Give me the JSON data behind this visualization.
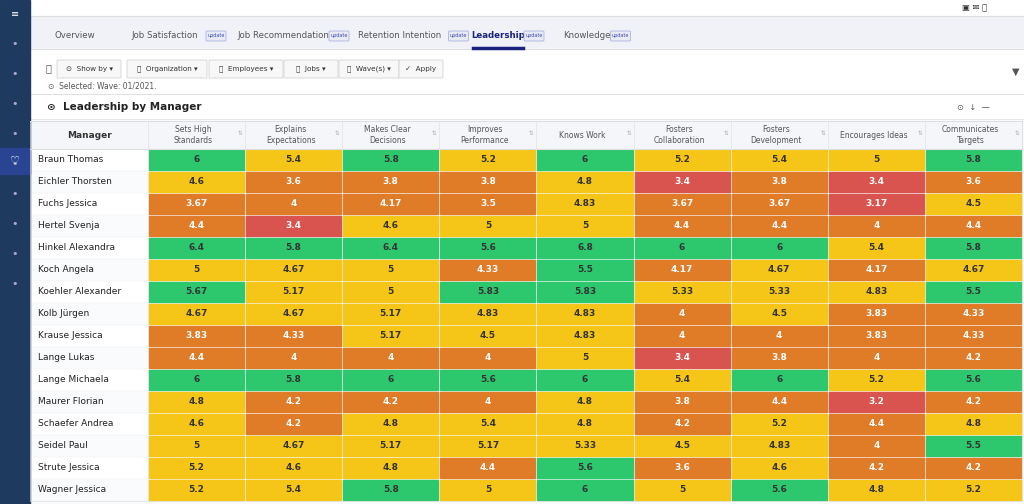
{
  "title": "Leadership by Manager",
  "columns": [
    "Sets High\nStandards",
    "Explains\nExpectations",
    "Makes Clear\nDecisions",
    "Improves\nPerformance",
    "Knows Work",
    "Fosters\nCollaboration",
    "Fosters\nDevelopment",
    "Encourages Ideas",
    "Communicates\nTargets"
  ],
  "managers": [
    "Braun Thomas",
    "Eichler Thorsten",
    "Fuchs Jessica",
    "Hertel Svenja",
    "Hinkel Alexandra",
    "Koch Angela",
    "Koehler Alexander",
    "Kolb Jürgen",
    "Krause Jessica",
    "Lange Lukas",
    "Lange Michaela",
    "Maurer Florian",
    "Schaefer Andrea",
    "Seidel Paul",
    "Strute Jessica",
    "Wagner Jessica"
  ],
  "values": [
    [
      6,
      5.4,
      5.8,
      5.2,
      6,
      5.2,
      5.4,
      5,
      5.8
    ],
    [
      4.6,
      3.6,
      3.8,
      3.8,
      4.8,
      3.4,
      3.8,
      3.4,
      3.6
    ],
    [
      3.67,
      4,
      4.17,
      3.5,
      4.83,
      3.67,
      3.67,
      3.17,
      4.5
    ],
    [
      4.4,
      3.4,
      4.6,
      5,
      5,
      4.4,
      4.4,
      4,
      4.4
    ],
    [
      6.4,
      5.8,
      6.4,
      5.6,
      6.8,
      6,
      6,
      5.4,
      5.8
    ],
    [
      5,
      4.67,
      5,
      4.33,
      5.5,
      4.17,
      4.67,
      4.17,
      4.67
    ],
    [
      5.67,
      5.17,
      5,
      5.83,
      5.83,
      5.33,
      5.33,
      4.83,
      5.5
    ],
    [
      4.67,
      4.67,
      5.17,
      4.83,
      4.83,
      4,
      4.5,
      3.83,
      4.33
    ],
    [
      3.83,
      4.33,
      5.17,
      4.5,
      4.83,
      4,
      4,
      3.83,
      4.33
    ],
    [
      4.4,
      4,
      4,
      4,
      5,
      3.4,
      3.8,
      4,
      4.2
    ],
    [
      6,
      5.8,
      6,
      5.6,
      6,
      5.4,
      6,
      5.2,
      5.6
    ],
    [
      4.8,
      4.2,
      4.2,
      4,
      4.8,
      3.8,
      4.4,
      3.2,
      4.2
    ],
    [
      4.6,
      4.2,
      4.8,
      5.4,
      4.8,
      4.2,
      5.2,
      4.4,
      4.8
    ],
    [
      5,
      4.67,
      5.17,
      5.17,
      5.33,
      4.5,
      4.83,
      4,
      5.5
    ],
    [
      5.2,
      4.6,
      4.8,
      4.4,
      5.6,
      3.6,
      4.6,
      4.2,
      4.2
    ],
    [
      5.2,
      5.4,
      5.8,
      5,
      6,
      5,
      5.6,
      4.8,
      5.2
    ]
  ],
  "tabs": [
    "Overview",
    "Job Satisfaction",
    "Job Recommendation",
    "Retention Intention",
    "Leadership",
    "Knowledge"
  ],
  "filters": [
    "🖹  Show by ▾",
    "👥  Organization ▾",
    "👤  Employees ▾",
    "🌿  Jobs ▾",
    "🗓  Wave(s) ▾",
    "✓  Apply"
  ],
  "colors": {
    "green": "#2DC76D",
    "yellow": "#F5C518",
    "orange": "#E07B28",
    "dark_orange": "#CC6600",
    "sidebar": "#1e3a5f",
    "sidebar_accent": "#2a52be",
    "topbar_bg": "#f8f9fc",
    "content_bg": "#ffffff",
    "tab_bg": "#eef1f8",
    "border": "#dddddd",
    "border_light": "#eeeeee",
    "text_dark": "#222222",
    "text_mid": "#555555",
    "text_light": "#888888",
    "active_tab": "#1a237e",
    "header_bg": "#f5f5f5"
  }
}
